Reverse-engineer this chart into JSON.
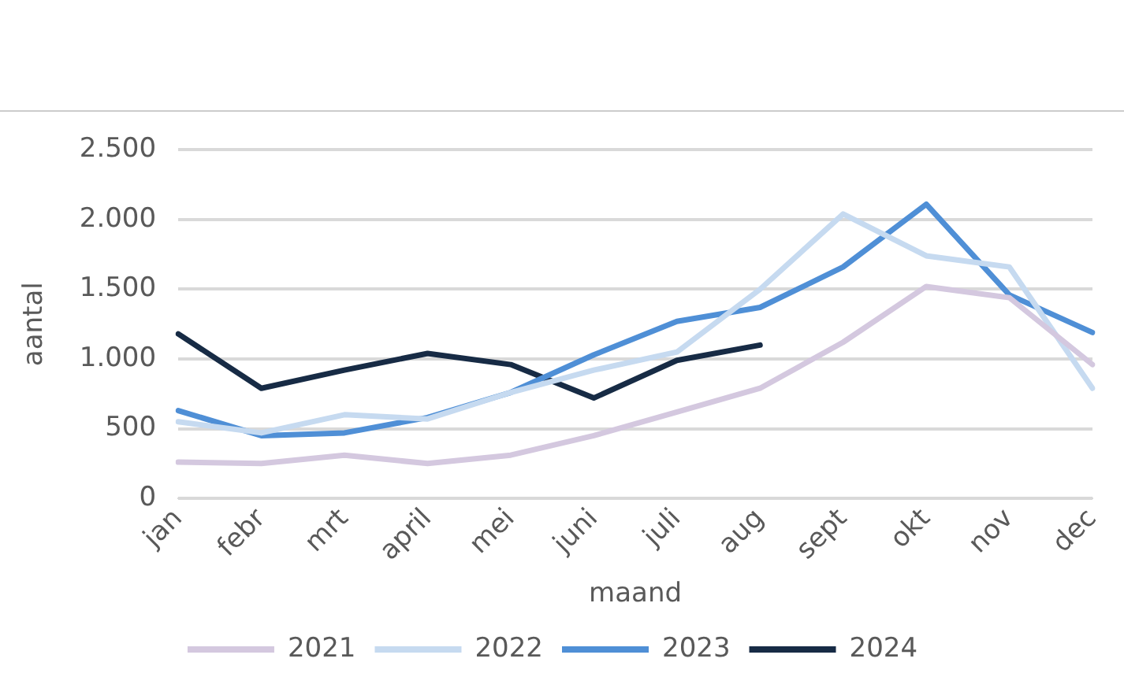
{
  "chart_data": {
    "type": "line",
    "xlabel": "maand",
    "ylabel": "aantal",
    "categories": [
      "jan",
      "febr",
      "mrt",
      "april",
      "mei",
      "juni",
      "juli",
      "aug",
      "sept",
      "okt",
      "nov",
      "dec"
    ],
    "series": [
      {
        "name": "2021",
        "color": "#d4c8df",
        "values": [
          260,
          250,
          310,
          250,
          310,
          450,
          620,
          790,
          1120,
          1520,
          1440,
          960
        ]
      },
      {
        "name": "2022",
        "color": "#c6daf0",
        "values": [
          550,
          470,
          600,
          570,
          760,
          920,
          1050,
          1500,
          2040,
          1740,
          1660,
          790
        ]
      },
      {
        "name": "2023",
        "color": "#4f8fd6",
        "values": [
          630,
          450,
          470,
          580,
          760,
          1030,
          1270,
          1370,
          1660,
          2110,
          1460,
          1190
        ]
      },
      {
        "name": "2024",
        "color": "#172b45",
        "values": [
          1180,
          790,
          920,
          1040,
          960,
          720,
          990,
          1100,
          null,
          null,
          null,
          null
        ]
      }
    ],
    "ylim": [
      0,
      2500
    ],
    "yticks": [
      0,
      500,
      {
        "value": 1000,
        "label": "1.000"
      },
      {
        "value": 1500,
        "label": "1.500"
      },
      {
        "value": 2000,
        "label": "2.000"
      },
      {
        "value": 2500,
        "label": "2.500"
      }
    ],
    "grid": "y",
    "legend": "bottom",
    "marker": "none",
    "line_style": "solid"
  }
}
